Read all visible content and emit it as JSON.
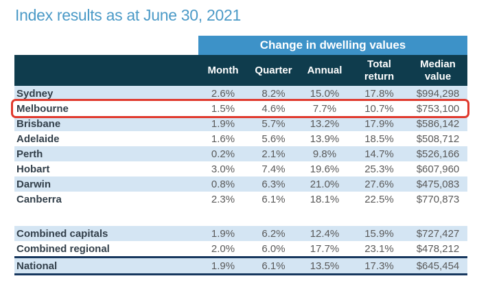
{
  "chart_data": {
    "type": "table",
    "title": "Index results as at June 30, 2021",
    "group_header": "Change in dwelling values",
    "columns": [
      "Month",
      "Quarter",
      "Annual",
      "Total return",
      "Median value"
    ],
    "rows": [
      {
        "name": "Sydney",
        "group": "capital",
        "highlight": false,
        "values": [
          "2.6%",
          "8.2%",
          "15.0%",
          "17.8%",
          "$994,298"
        ]
      },
      {
        "name": "Melbourne",
        "group": "capital",
        "highlight": true,
        "values": [
          "1.5%",
          "4.6%",
          "7.7%",
          "10.7%",
          "$753,100"
        ]
      },
      {
        "name": "Brisbane",
        "group": "capital",
        "highlight": false,
        "values": [
          "1.9%",
          "5.7%",
          "13.2%",
          "17.9%",
          "$586,142"
        ]
      },
      {
        "name": "Adelaide",
        "group": "capital",
        "highlight": false,
        "values": [
          "1.6%",
          "5.6%",
          "13.9%",
          "18.5%",
          "$508,712"
        ]
      },
      {
        "name": "Perth",
        "group": "capital",
        "highlight": false,
        "values": [
          "0.2%",
          "2.1%",
          "9.8%",
          "14.7%",
          "$526,166"
        ]
      },
      {
        "name": "Hobart",
        "group": "capital",
        "highlight": false,
        "values": [
          "3.0%",
          "7.4%",
          "19.6%",
          "25.3%",
          "$607,960"
        ]
      },
      {
        "name": "Darwin",
        "group": "capital",
        "highlight": false,
        "values": [
          "0.8%",
          "6.3%",
          "21.0%",
          "27.6%",
          "$475,083"
        ]
      },
      {
        "name": "Canberra",
        "group": "capital",
        "highlight": false,
        "values": [
          "2.3%",
          "6.1%",
          "18.1%",
          "22.5%",
          "$770,873"
        ]
      },
      {
        "name": "Combined capitals",
        "group": "aggregate",
        "highlight": false,
        "values": [
          "1.9%",
          "6.2%",
          "12.4%",
          "15.9%",
          "$727,427"
        ]
      },
      {
        "name": "Combined regional",
        "group": "aggregate",
        "highlight": false,
        "values": [
          "2.0%",
          "6.0%",
          "17.7%",
          "23.1%",
          "$478,212"
        ]
      },
      {
        "name": "National",
        "group": "national",
        "highlight": false,
        "values": [
          "1.9%",
          "6.1%",
          "13.5%",
          "17.3%",
          "$645,454"
        ]
      }
    ]
  },
  "colors": {
    "title_blue": "#4b9ac7",
    "banner_blue": "#3d92c8",
    "header_dark": "#0f3c4d",
    "row_shade": "#d4e5f3",
    "name_color": "#323f4a",
    "value_color": "#595959",
    "navy_line": "#17375e",
    "highlight_red": "#e0382c"
  }
}
